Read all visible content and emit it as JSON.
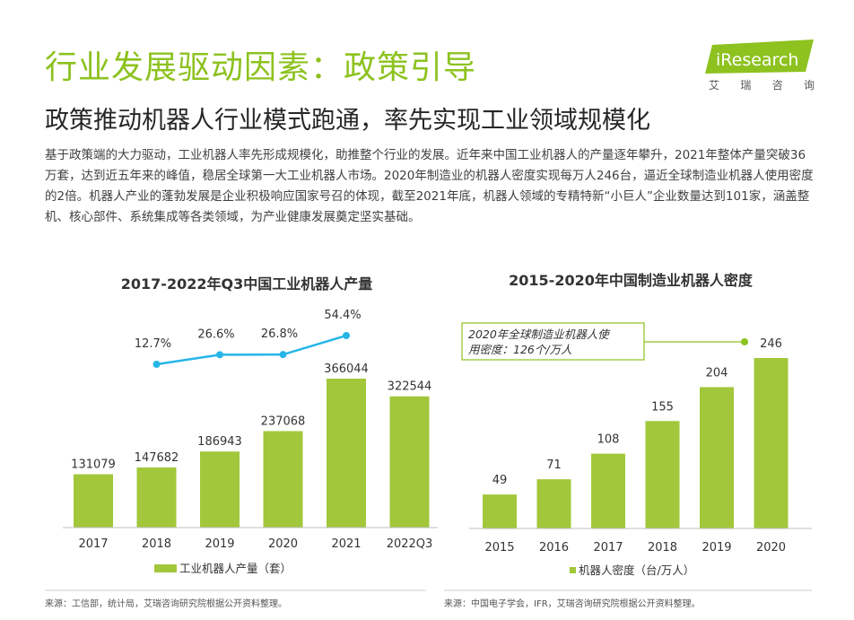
{
  "header": {
    "title": "行业发展驱动因素：政策引导",
    "subtitle": "政策推动机器人行业模式跑通，率先实现工业领域规模化"
  },
  "brand": {
    "logo_text": "iResearch",
    "tagline": [
      "艾",
      "瑞",
      "咨",
      "询"
    ],
    "accent_color": "#8dc21f"
  },
  "body_text": "基于政策端的大力驱动，工业机器人率先形成规模化，助推整个行业的发展。近年来中国工业机器人的产量逐年攀升，2021年整体产量突破36万套，达到近五年来的峰值，稳居全球第一大工业机器人市场。2020年制造业的机器人密度实现每万人246台，逼近全球制造业机器人使用密度的2倍。机器人产业的蓬勃发展是企业积极响应国家号召的体现，截至2021年底，机器人领域的专精特新“小巨人”企业数量达到101家，涵盖整机、核心部件、系统集成等各类领域，为产业健康发展奠定坚实基础。",
  "chart_data": [
    {
      "type": "bar",
      "title": "2017-2022年Q3中国工业机器人产量",
      "categories": [
        "2017",
        "2018",
        "2019",
        "2020",
        "2021",
        "2022Q3"
      ],
      "series": [
        {
          "name": "工业机器人产量（套）",
          "values": [
            131079,
            147682,
            186943,
            237068,
            366044,
            322544
          ],
          "color": "#a2c73b"
        }
      ],
      "growth_line": {
        "categories": [
          "2018",
          "2019",
          "2020",
          "2021"
        ],
        "labels": [
          "12.7%",
          "26.6%",
          "26.8%",
          "54.4%"
        ],
        "values": [
          12.7,
          26.6,
          26.8,
          54.4
        ],
        "color": "#27b5e8"
      },
      "legend_position": "bottom",
      "grid": false,
      "source": "来源：工信部，统计局，艾瑞咨询研究院根据公开资料整理。"
    },
    {
      "type": "bar",
      "title": "2015-2020年中国制造业机器人密度",
      "categories": [
        "2015",
        "2016",
        "2017",
        "2018",
        "2019",
        "2020"
      ],
      "series": [
        {
          "name": "机器人密度（台/万人）",
          "values": [
            49,
            71,
            108,
            155,
            204,
            246
          ],
          "color": "#a2c73b"
        }
      ],
      "annotation": {
        "text_line1": "2020年全球制造业机器人使",
        "text_line2": "用密度：126个/万人",
        "value": 126,
        "color": "#8dc21f"
      },
      "legend_position": "bottom",
      "grid": false,
      "source": "来源：中国电子学会，IFR，艾瑞咨询研究院根据公开资料整理。"
    }
  ]
}
